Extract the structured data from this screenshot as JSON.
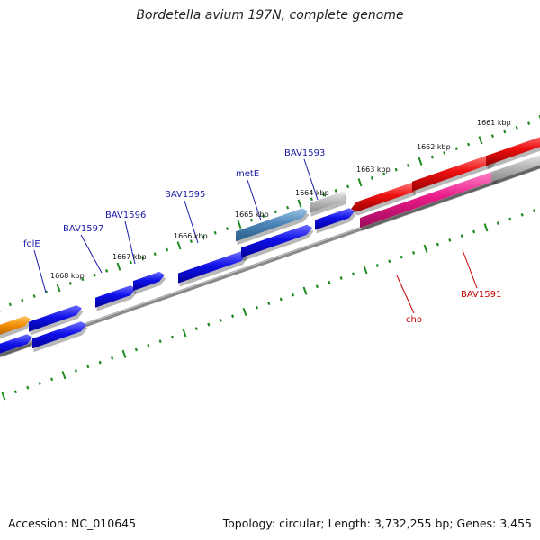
{
  "title": "Bordetella avium 197N, complete genome",
  "footer": {
    "accession": "Accession: NC_010645",
    "summary": "Topology: circular; Length: 3,732,255 bp; Genes: 3,455"
  },
  "colors": {
    "backbone": "#7a7a7a",
    "tick": "#1f8a1f",
    "forward_gene": "#1010e0",
    "reverse_gene": "#e51010",
    "metE": "#4d87b8",
    "pseudo_gray": "#b9b9b9",
    "cho": "#ea1a8a",
    "orange": "#f08c00",
    "label_blue": "#1a1aa8",
    "label_red": "#c80000"
  },
  "scale_labels": [
    "1661 kbp",
    "1662 kbp",
    "1663 kbp",
    "1664 kbp",
    "1665 kbp",
    "1666 kbp",
    "1667 kbp",
    "1668 kbp"
  ],
  "gene_labels": [
    {
      "name": "folE",
      "strand": "forward"
    },
    {
      "name": "BAV1597",
      "strand": "forward"
    },
    {
      "name": "BAV1596",
      "strand": "forward"
    },
    {
      "name": "BAV1595",
      "strand": "forward"
    },
    {
      "name": "metE",
      "strand": "forward"
    },
    {
      "name": "BAV1593",
      "strand": "forward"
    },
    {
      "name": "cho",
      "strand": "reverse"
    },
    {
      "name": "BAV1591",
      "strand": "reverse"
    }
  ]
}
